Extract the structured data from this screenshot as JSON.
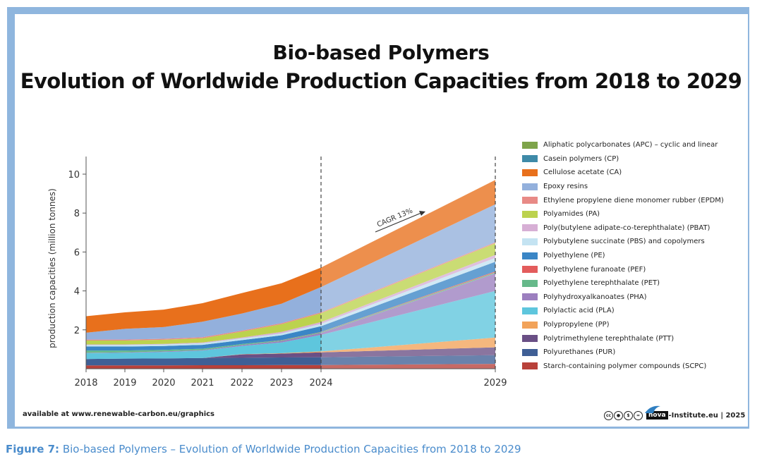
{
  "title_line1": "Bio-based Polymers",
  "title_line2": "Evolution of Worldwide Production Capacities from 2018 to 2029",
  "footer_left": "available at www.renewable-carbon.eu/graphics",
  "footer_right": {
    "license_icons": "cc-by-nc-nd-icons",
    "logo_text": "nova",
    "suffix": "-Institute.eu | 2025"
  },
  "caption_prefix": "Figure 7:",
  "caption_text": "Bio-based Polymers – Evolution of Worldwide Production Capacities from 2018 to 2029",
  "annotation": "CAGR 13%",
  "colors": {
    "frame": "#8fb6de",
    "caption": "#4a8ccc"
  },
  "chart_data": {
    "type": "area",
    "stacked": true,
    "x": [
      2018,
      2019,
      2020,
      2021,
      2022,
      2023,
      2024,
      2029
    ],
    "x_tick_labels": [
      "2018",
      "2019",
      "2020",
      "2021",
      "2022",
      "2023",
      "2024",
      "2029"
    ],
    "ylabel": "production capacities (million tonnes)",
    "ylim": [
      0,
      11
    ],
    "yticks": [
      2,
      4,
      6,
      8,
      10
    ],
    "vlines": [
      2024,
      2029
    ],
    "series": [
      {
        "name": "Starch-containing polymer compounds (SCPC)",
        "color": "#b8413a",
        "values": [
          0.17,
          0.17,
          0.17,
          0.18,
          0.18,
          0.19,
          0.19,
          0.25
        ]
      },
      {
        "name": "Polyurethanes (PUR)",
        "color": "#3f5f95",
        "values": [
          0.33,
          0.35,
          0.36,
          0.37,
          0.38,
          0.39,
          0.4,
          0.45
        ]
      },
      {
        "name": "Polytrimethylene terephthalate (PTT)",
        "color": "#6a4f85",
        "values": [
          0.0,
          0.0,
          0.0,
          0.0,
          0.18,
          0.2,
          0.25,
          0.4
        ]
      },
      {
        "name": "Polypropylene (PP)",
        "color": "#f2a35a",
        "values": [
          0.0,
          0.0,
          0.0,
          0.0,
          0.01,
          0.02,
          0.05,
          0.5
        ]
      },
      {
        "name": "Polylactic acid (PLA)",
        "color": "#5ec6dd",
        "values": [
          0.3,
          0.3,
          0.33,
          0.38,
          0.42,
          0.55,
          0.85,
          2.4
        ]
      },
      {
        "name": "Polyhydroxyalkanoates (PHA)",
        "color": "#9c7fbf",
        "values": [
          0.02,
          0.02,
          0.03,
          0.03,
          0.05,
          0.07,
          0.1,
          0.9
        ]
      },
      {
        "name": "Polyethylene terephthalate (PET)",
        "color": "#66b98a",
        "values": [
          0.12,
          0.1,
          0.08,
          0.07,
          0.05,
          0.04,
          0.04,
          0.05
        ]
      },
      {
        "name": "Polyethylene furanoate (PEF)",
        "color": "#e35c5c",
        "values": [
          0.0,
          0.0,
          0.0,
          0.0,
          0.0,
          0.01,
          0.01,
          0.05
        ]
      },
      {
        "name": "Polyethylene (PE)",
        "color": "#3a86c6",
        "values": [
          0.2,
          0.2,
          0.2,
          0.2,
          0.2,
          0.25,
          0.3,
          0.5
        ]
      },
      {
        "name": "Polybutylene succinate (PBS) and copolymers",
        "color": "#c4e3f2",
        "values": [
          0.08,
          0.08,
          0.08,
          0.08,
          0.09,
          0.1,
          0.12,
          0.2
        ]
      },
      {
        "name": "Poly(butylene adipate-co-terephthalate) (PBAT)",
        "color": "#d7afd5",
        "values": [
          0.03,
          0.03,
          0.03,
          0.04,
          0.05,
          0.07,
          0.09,
          0.15
        ]
      },
      {
        "name": "Polyamides (PA)",
        "color": "#bcd24e",
        "values": [
          0.2,
          0.2,
          0.21,
          0.22,
          0.3,
          0.4,
          0.45,
          0.6
        ]
      },
      {
        "name": "Ethylene propylene diene monomer rubber (EPDM)",
        "color": "#e88a86",
        "values": [
          0.05,
          0.05,
          0.05,
          0.05,
          0.05,
          0.05,
          0.05,
          0.05
        ]
      },
      {
        "name": "Epoxy resins",
        "color": "#93b0dc",
        "values": [
          0.35,
          0.55,
          0.6,
          0.8,
          0.88,
          1.0,
          1.3,
          1.95
        ]
      },
      {
        "name": "Cellulose acetate (CA)",
        "color": "#e8701c",
        "values": [
          0.85,
          0.85,
          0.9,
          0.95,
          1.05,
          1.05,
          1.0,
          1.25
        ]
      },
      {
        "name": "Casein polymers (CP)",
        "color": "#3e8aa8",
        "values": [
          0.0,
          0.0,
          0.0,
          0.0,
          0.0,
          0.0,
          0.0,
          0.0
        ]
      },
      {
        "name": "Aliphatic polycarbonates (APC) – cyclic and linear",
        "color": "#7ea44a",
        "values": [
          0.0,
          0.0,
          0.0,
          0.0,
          0.0,
          0.0,
          0.0,
          0.0
        ]
      }
    ],
    "legend_order": [
      "Aliphatic polycarbonates (APC) – cyclic and linear",
      "Casein polymers (CP)",
      "Cellulose acetate (CA)",
      "Epoxy resins",
      "Ethylene propylene diene monomer rubber (EPDM)",
      "Polyamides (PA)",
      "Poly(butylene adipate-co-terephthalate) (PBAT)",
      "Polybutylene succinate (PBS) and copolymers",
      "Polyethylene (PE)",
      "Polyethylene furanoate (PEF)",
      "Polyethylene terephthalate (PET)",
      "Polyhydroxyalkanoates (PHA)",
      "Polylactic acid (PLA)",
      "Polypropylene (PP)",
      "Polytrimethylene terephthalate (PTT)",
      "Polyurethanes (PUR)",
      "Starch-containing polymer compounds (SCPC)"
    ],
    "legend_placement": "right"
  }
}
